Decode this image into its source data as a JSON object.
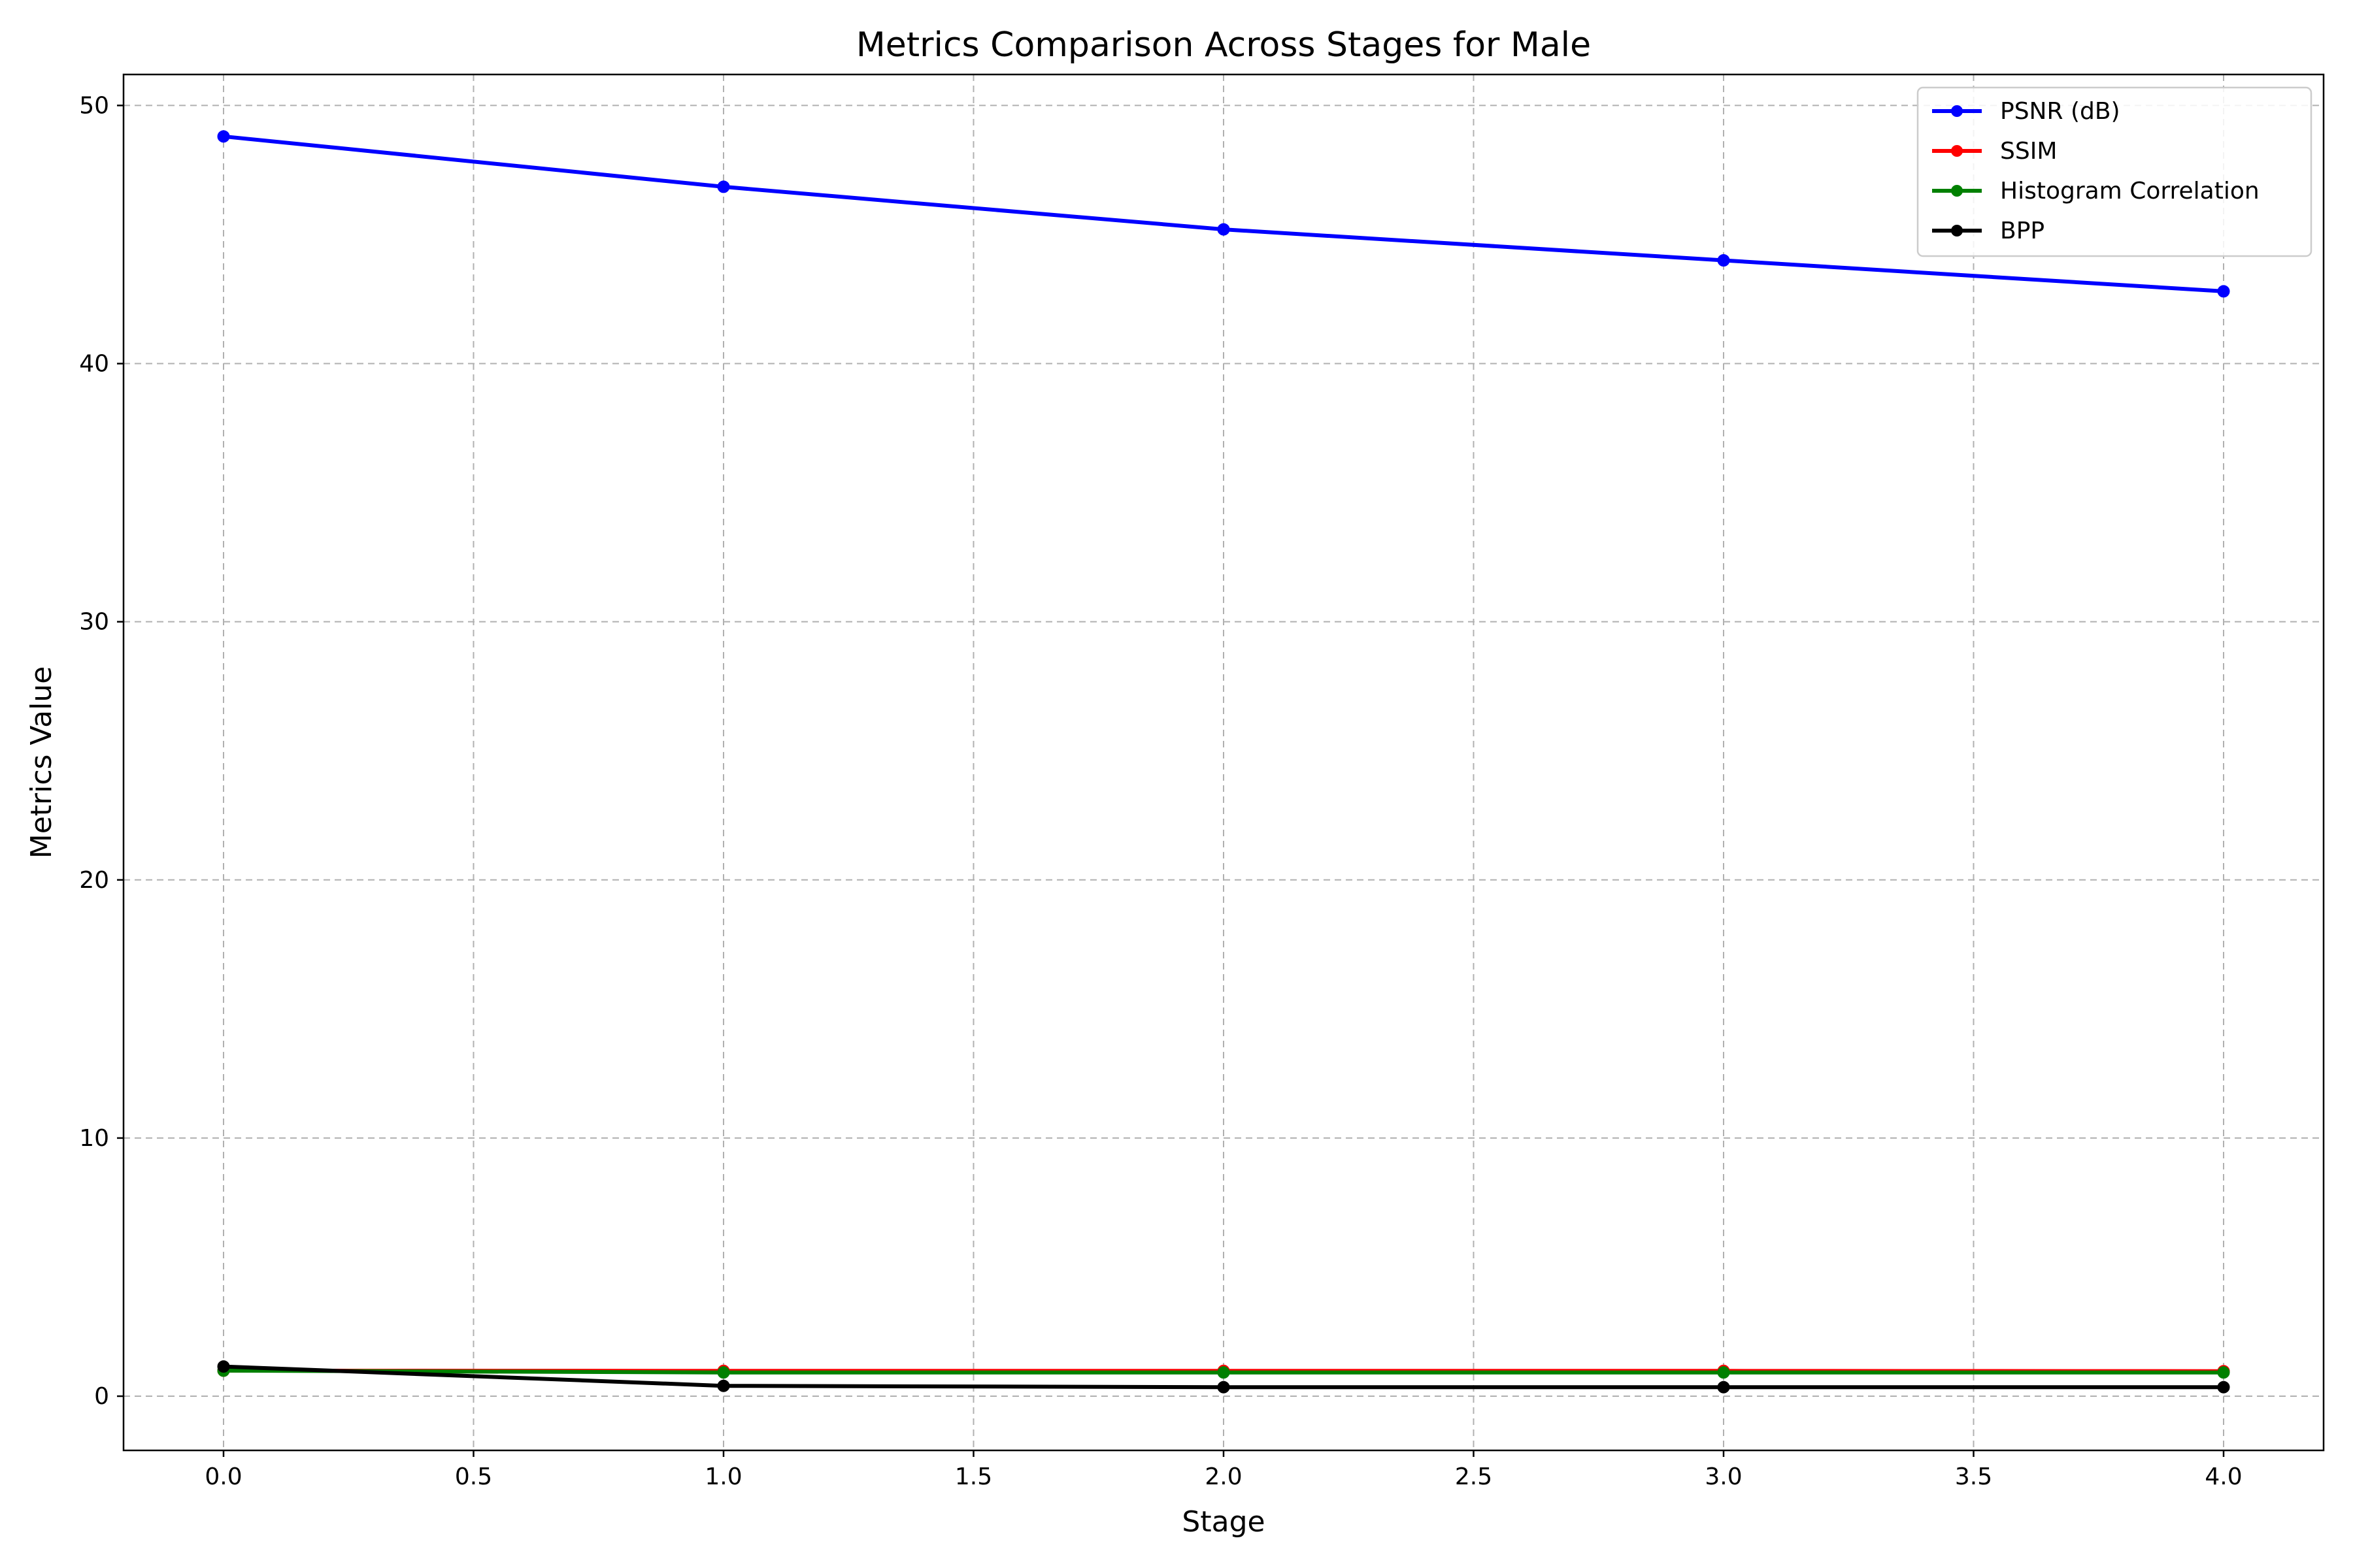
{
  "chart_data": {
    "type": "line",
    "title": "Metrics Comparison Across Stages for Male",
    "xlabel": "Stage",
    "ylabel": "Metrics Value",
    "x": [
      0,
      1,
      2,
      3,
      4
    ],
    "xlim": [
      -0.2,
      4.2
    ],
    "ylim": [
      -2.1,
      51.2
    ],
    "x_ticks": [
      "0.0",
      "0.5",
      "1.0",
      "1.5",
      "2.0",
      "2.5",
      "3.0",
      "3.5",
      "4.0"
    ],
    "y_ticks": [
      "0",
      "10",
      "20",
      "30",
      "40",
      "50"
    ],
    "grid": true,
    "legend_position": "top-right",
    "series": [
      {
        "name": "PSNR (dB)",
        "color": "#0000ff",
        "values": [
          48.8,
          46.85,
          45.2,
          44.0,
          42.8
        ]
      },
      {
        "name": "SSIM",
        "color": "#ff0000",
        "values": [
          0.99,
          0.98,
          0.98,
          0.98,
          0.97
        ]
      },
      {
        "name": "Histogram Correlation",
        "color": "#008000",
        "values": [
          0.99,
          0.92,
          0.92,
          0.92,
          0.92
        ]
      },
      {
        "name": "BPP",
        "color": "#000000",
        "values": [
          1.15,
          0.4,
          0.35,
          0.35,
          0.35
        ]
      }
    ]
  }
}
